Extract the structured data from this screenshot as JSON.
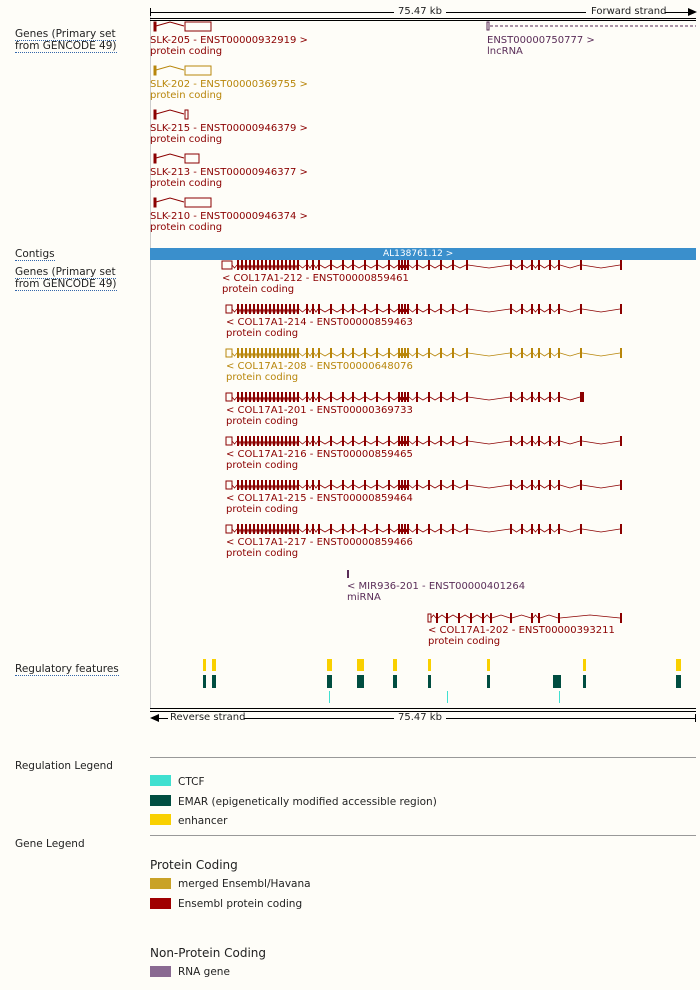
{
  "scale": {
    "length": "75.47 kb",
    "forward": "Forward strand",
    "reverse": "Reverse strand"
  },
  "tracks": {
    "genes_top": "Genes (Primary set from GENCODE 49)",
    "contigs": "Contigs",
    "genes_bottom": "Genes (Primary set from GENCODE 49)",
    "regulatory": "Regulatory features"
  },
  "contig_label": "AL138761.12 >",
  "forward_transcripts": [
    {
      "name": "SLK-205 - ENST00000932919 >",
      "biotype": "protein coding"
    },
    {
      "name": "ENST00000750777 >",
      "biotype": "lncRNA"
    },
    {
      "name": "SLK-202 - ENST00000369755 >",
      "biotype": "protein coding"
    },
    {
      "name": "SLK-215 - ENST00000946379 >",
      "biotype": "protein coding"
    },
    {
      "name": "SLK-213 - ENST00000946377 >",
      "biotype": "protein coding"
    },
    {
      "name": "SLK-210 - ENST00000946374 >",
      "biotype": "protein coding"
    }
  ],
  "reverse_transcripts": [
    {
      "name": "< COL17A1-212 - ENST00000859461",
      "biotype": "protein coding"
    },
    {
      "name": "< COL17A1-214 - ENST00000859463",
      "biotype": "protein coding"
    },
    {
      "name": "< COL17A1-208 - ENST00000648076",
      "biotype": "protein coding"
    },
    {
      "name": "< COL17A1-201 - ENST00000369733",
      "biotype": "protein coding"
    },
    {
      "name": "< COL17A1-216 - ENST00000859465",
      "biotype": "protein coding"
    },
    {
      "name": "< COL17A1-215 - ENST00000859464",
      "biotype": "protein coding"
    },
    {
      "name": "< COL17A1-217 - ENST00000859466",
      "biotype": "protein coding"
    },
    {
      "name": "< MIR936-201 - ENST00000401264",
      "biotype": "miRNA"
    },
    {
      "name": "< COL17A1-202 - ENST00000393211",
      "biotype": "protein coding"
    }
  ],
  "regulation_legend": {
    "heading": "Regulation Legend",
    "items": [
      {
        "label": "CTCF",
        "color": "#40e0d0"
      },
      {
        "label": "EMAR (epigenetically modified accessible region)",
        "color": "#004d40"
      },
      {
        "label": "enhancer",
        "color": "#f9d000"
      }
    ]
  },
  "gene_legend": {
    "heading": "Gene Legend",
    "protein_coding_title": "Protein Coding",
    "protein_coding": [
      {
        "label": "merged Ensembl/Havana",
        "color": "#c9a227"
      },
      {
        "label": "Ensembl protein coding",
        "color": "#a00000"
      }
    ],
    "non_coding_title": "Non-Protein Coding",
    "non_coding": [
      {
        "label": "RNA gene",
        "color": "#8a6a92"
      }
    ]
  }
}
